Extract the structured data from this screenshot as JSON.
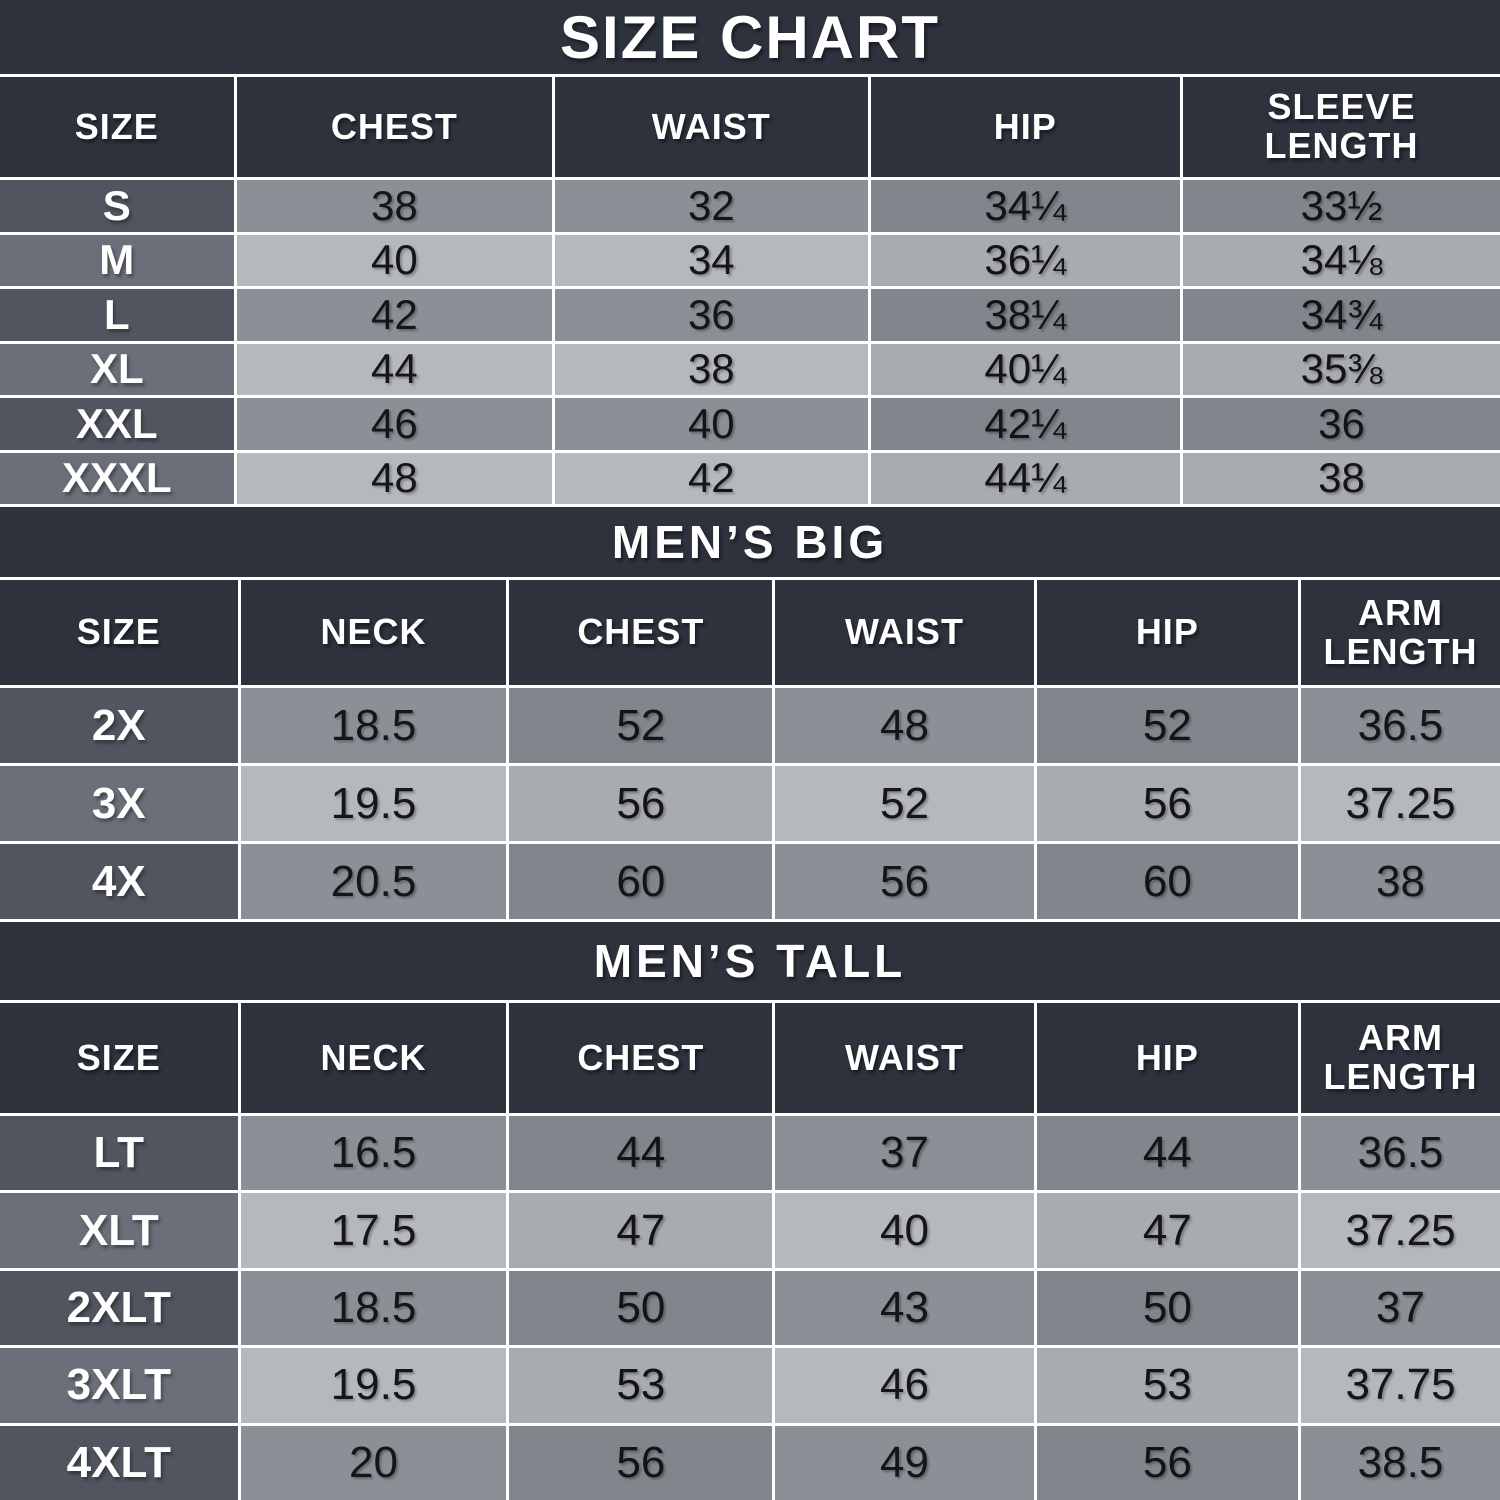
{
  "theme": {
    "navy": "#2d323d",
    "col1_dark": "#50555f",
    "col1_light": "#6a6f79",
    "cell_dark": "#8b9097",
    "cell_light": "#b5b8bd",
    "grid_line": "#ffffff",
    "text_dark": "#15151a",
    "text_light": "#ffffff"
  },
  "chart_data": [
    {
      "type": "table",
      "title": "SIZE CHART",
      "columns": [
        "SIZE",
        "CHEST",
        "WAIST",
        "HIP",
        "SLEEVE LENGTH"
      ],
      "rows": [
        {
          "size": "S",
          "cells": [
            "38",
            "32",
            "34¼",
            "33½"
          ]
        },
        {
          "size": "M",
          "cells": [
            "40",
            "34",
            "36¼",
            "34⅛"
          ]
        },
        {
          "size": "L",
          "cells": [
            "42",
            "36",
            "38¼",
            "34¾"
          ]
        },
        {
          "size": "XL",
          "cells": [
            "44",
            "38",
            "40¼",
            "35⅜"
          ]
        },
        {
          "size": "XXL",
          "cells": [
            "46",
            "40",
            "42¼",
            "36"
          ]
        },
        {
          "size": "XXXL",
          "cells": [
            "48",
            "42",
            "44¼",
            "38"
          ]
        }
      ]
    },
    {
      "type": "table",
      "title": "MEN’S BIG",
      "columns": [
        "SIZE",
        "NECK",
        "CHEST",
        "WAIST",
        "HIP",
        "ARM LENGTH"
      ],
      "rows": [
        {
          "size": "2X",
          "cells": [
            "18.5",
            "52",
            "48",
            "52",
            "36.5"
          ]
        },
        {
          "size": "3X",
          "cells": [
            "19.5",
            "56",
            "52",
            "56",
            "37.25"
          ]
        },
        {
          "size": "4X",
          "cells": [
            "20.5",
            "60",
            "56",
            "60",
            "38"
          ]
        }
      ]
    },
    {
      "type": "table",
      "title": "MEN’S TALL",
      "columns": [
        "SIZE",
        "NECK",
        "CHEST",
        "WAIST",
        "HIP",
        "ARM LENGTH"
      ],
      "rows": [
        {
          "size": "LT",
          "cells": [
            "16.5",
            "44",
            "37",
            "44",
            "36.5"
          ]
        },
        {
          "size": "XLT",
          "cells": [
            "17.5",
            "47",
            "40",
            "47",
            "37.25"
          ]
        },
        {
          "size": "2XLT",
          "cells": [
            "18.5",
            "50",
            "43",
            "50",
            "37"
          ]
        },
        {
          "size": "3XLT",
          "cells": [
            "19.5",
            "53",
            "46",
            "53",
            "37.75"
          ]
        },
        {
          "size": "4XLT",
          "cells": [
            "20",
            "56",
            "49",
            "56",
            "38.5"
          ]
        }
      ]
    }
  ]
}
